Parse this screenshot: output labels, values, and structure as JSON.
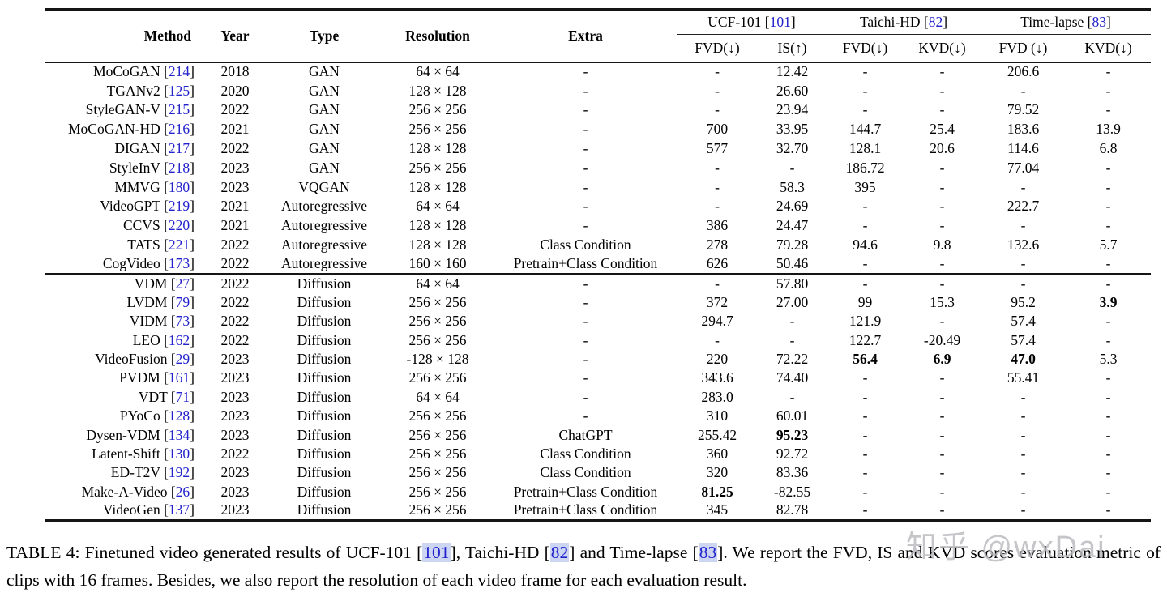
{
  "colors": {
    "link_blue": "#2222cc",
    "citation_highlight": "#ccd6f2",
    "rule_color": "#151515",
    "text_color": "#000000",
    "watermark_gray": "#bcbcc1"
  },
  "watermark": {
    "text": "知乎 @wxDai"
  },
  "table": {
    "headers": {
      "method": "Method",
      "year": "Year",
      "type": "Type",
      "resolution": "Resolution",
      "extra": "Extra"
    },
    "groups": [
      {
        "label": "UCF-101",
        "cite": "[101]"
      },
      {
        "label": "Taichi-HD",
        "cite": "[82]"
      },
      {
        "label": "Time-lapse",
        "cite": "[83]"
      }
    ],
    "subheaders": [
      "FVD(↓)",
      "IS(↑)",
      "FVD(↓)",
      "KVD(↓)",
      "FVD (↓)",
      "KVD(↓)"
    ],
    "sections": [
      {
        "rows": [
          {
            "method": "MoCoGAN",
            "cite": "[214]",
            "year": "2018",
            "type": "GAN",
            "resolution": "64 × 64",
            "extra": "-",
            "values": [
              "-",
              "12.42",
              "-",
              "-",
              "206.6",
              "-"
            ],
            "bold": []
          },
          {
            "method": "TGANv2",
            "cite": "[125]",
            "year": "2020",
            "type": "GAN",
            "resolution": "128 × 128",
            "extra": "-",
            "values": [
              "-",
              "26.60",
              "-",
              "-",
              "-",
              "-"
            ],
            "bold": []
          },
          {
            "method": "StyleGAN-V",
            "cite": "[215]",
            "year": "2022",
            "type": "GAN",
            "resolution": "256 × 256",
            "extra": "-",
            "values": [
              "-",
              "23.94",
              "-",
              "-",
              "79.52",
              "-"
            ],
            "bold": []
          },
          {
            "method": "MoCoGAN-HD",
            "cite": "[216]",
            "year": "2021",
            "type": "GAN",
            "resolution": "256 × 256",
            "extra": "-",
            "values": [
              "700",
              "33.95",
              "144.7",
              "25.4",
              "183.6",
              "13.9"
            ],
            "bold": []
          },
          {
            "method": "DIGAN",
            "cite": "[217]",
            "year": "2022",
            "type": "GAN",
            "resolution": "128 × 128",
            "extra": "-",
            "values": [
              "577",
              "32.70",
              "128.1",
              "20.6",
              "114.6",
              "6.8"
            ],
            "bold": []
          },
          {
            "method": "StyleInV",
            "cite": "[218]",
            "year": "2023",
            "type": "GAN",
            "resolution": "256 × 256",
            "extra": "-",
            "values": [
              "-",
              "-",
              "186.72",
              "-",
              "77.04",
              "-"
            ],
            "bold": []
          },
          {
            "method": "MMVG",
            "cite": "[180]",
            "year": "2023",
            "type": "VQGAN",
            "resolution": "128 × 128",
            "extra": "-",
            "values": [
              "-",
              "58.3",
              "395",
              "-",
              "-",
              "-"
            ],
            "bold": []
          },
          {
            "method": "VideoGPT",
            "cite": "[219]",
            "year": "2021",
            "type": "Autoregressive",
            "resolution": "64 × 64",
            "extra": "-",
            "values": [
              "-",
              "24.69",
              "-",
              "-",
              "222.7",
              "-"
            ],
            "bold": []
          },
          {
            "method": "CCVS",
            "cite": "[220]",
            "year": "2021",
            "type": "Autoregressive",
            "resolution": "128 × 128",
            "extra": "-",
            "values": [
              "386",
              "24.47",
              "-",
              "-",
              "-",
              "-"
            ],
            "bold": []
          },
          {
            "method": "TATS",
            "cite": "[221]",
            "year": "2022",
            "type": "Autoregressive",
            "resolution": "128 × 128",
            "extra": "Class Condition",
            "values": [
              "278",
              "79.28",
              "94.6",
              "9.8",
              "132.6",
              "5.7"
            ],
            "bold": []
          },
          {
            "method": "CogVideo",
            "cite": "[173]",
            "year": "2022",
            "type": "Autoregressive",
            "resolution": "160 × 160",
            "extra": "Pretrain+Class Condition",
            "values": [
              "626",
              "50.46",
              "-",
              "-",
              "-",
              "-"
            ],
            "bold": []
          }
        ]
      },
      {
        "rows": [
          {
            "method": "VDM",
            "cite": "[27]",
            "year": "2022",
            "type": "Diffusion",
            "resolution": "64 × 64",
            "extra": "-",
            "values": [
              "-",
              "57.80",
              "-",
              "-",
              "-",
              "-"
            ],
            "bold": []
          },
          {
            "method": "LVDM",
            "cite": "[79]",
            "year": "2022",
            "type": "Diffusion",
            "resolution": "256 × 256",
            "extra": "-",
            "values": [
              "372",
              "27.00",
              "99",
              "15.3",
              "95.2",
              "3.9"
            ],
            "bold": [
              5
            ]
          },
          {
            "method": "VIDM",
            "cite": "[73]",
            "year": "2022",
            "type": "Diffusion",
            "resolution": "256 × 256",
            "extra": "-",
            "values": [
              "294.7",
              "-",
              "121.9",
              "-",
              "57.4",
              "-"
            ],
            "bold": []
          },
          {
            "method": "LEO",
            "cite": "[162]",
            "year": "2022",
            "type": "Diffusion",
            "resolution": "256 × 256",
            "extra": "-",
            "values": [
              "-",
              "-",
              "122.7",
              "-20.49",
              "57.4",
              "-"
            ],
            "bold": []
          },
          {
            "method": "VideoFusion",
            "cite": "[29]",
            "year": "2023",
            "type": "Diffusion",
            "resolution": "-128 × 128",
            "extra": "-",
            "values": [
              "220",
              "72.22",
              "56.4",
              "6.9",
              "47.0",
              "5.3"
            ],
            "bold": [
              2,
              3,
              4
            ]
          },
          {
            "method": "PVDM",
            "cite": "[161]",
            "year": "2023",
            "type": "Diffusion",
            "resolution": "256 × 256",
            "extra": "-",
            "values": [
              "343.6",
              "74.40",
              "-",
              "-",
              "55.41",
              "-"
            ],
            "bold": []
          },
          {
            "method": "VDT",
            "cite": "[71]",
            "year": "2023",
            "type": "Diffusion",
            "resolution": "64 × 64",
            "extra": "-",
            "values": [
              "283.0",
              "-",
              "-",
              "-",
              "-",
              "-"
            ],
            "bold": []
          },
          {
            "method": "PYoCo",
            "cite": "[128]",
            "year": "2023",
            "type": "Diffusion",
            "resolution": "256 × 256",
            "extra": "-",
            "values": [
              "310",
              "60.01",
              "-",
              "-",
              "-",
              "-"
            ],
            "bold": []
          },
          {
            "method": "Dysen-VDM",
            "cite": "[134]",
            "year": "2023",
            "type": "Diffusion",
            "resolution": "256 × 256",
            "extra": "ChatGPT",
            "values": [
              "255.42",
              "95.23",
              "-",
              "-",
              "-",
              "-"
            ],
            "bold": [
              1
            ]
          },
          {
            "method": "Latent-Shift",
            "cite": "[130]",
            "year": "2022",
            "type": "Diffusion",
            "resolution": "256 × 256",
            "extra": "Class Condition",
            "values": [
              "360",
              "92.72",
              "-",
              "-",
              "-",
              "-"
            ],
            "bold": []
          },
          {
            "method": "ED-T2V",
            "cite": "[192]",
            "year": "2023",
            "type": "Diffusion",
            "resolution": "256 × 256",
            "extra": "Class Condition",
            "values": [
              "320",
              "83.36",
              "-",
              "-",
              "-",
              "-"
            ],
            "bold": []
          },
          {
            "method": "Make-A-Video",
            "cite": "[26]",
            "year": "2023",
            "type": "Diffusion",
            "resolution": "256 × 256",
            "extra": "Pretrain+Class Condition",
            "values": [
              "81.25",
              "-82.55",
              "-",
              "-",
              "-",
              "-"
            ],
            "bold": [
              0
            ]
          },
          {
            "method": "VideoGen",
            "cite": "[137]",
            "year": "2023",
            "type": "Diffusion",
            "resolution": "256 × 256",
            "extra": "Pretrain+Class Condition",
            "values": [
              "345",
              "82.78",
              "-",
              "-",
              "-",
              "-"
            ],
            "bold": []
          }
        ]
      }
    ]
  },
  "caption": {
    "parts": [
      {
        "text": "TABLE 4: Finetuned video generated results of UCF-101 "
      },
      {
        "cite": "[101]"
      },
      {
        "text": ", Taichi-HD "
      },
      {
        "cite": "[82]"
      },
      {
        "text": " and Time-lapse "
      },
      {
        "cite": "[83]"
      },
      {
        "text": ". We report the FVD, IS and KVD scores evaluation metric of clips with 16 frames. Besides, we also report the resolution of each video frame for each evaluation result."
      }
    ]
  }
}
